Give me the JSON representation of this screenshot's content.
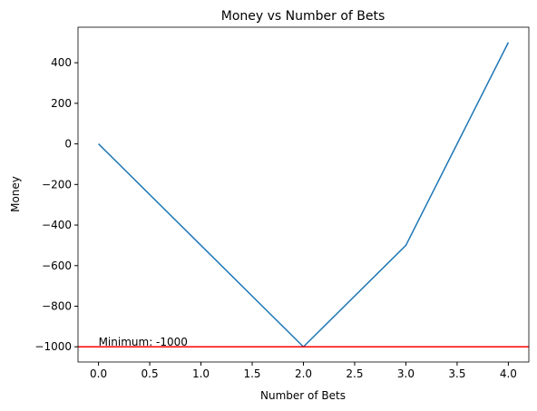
{
  "chart_data": {
    "type": "line",
    "title": "Money vs Number of Bets",
    "xlabel": "Number of Bets",
    "ylabel": "Money",
    "x": [
      0,
      1,
      2,
      3,
      4
    ],
    "series": [
      {
        "color": "#1f77b4",
        "values": [
          0,
          -500,
          -1000,
          -500,
          500
        ]
      }
    ],
    "xlim": [
      -0.2,
      4.2
    ],
    "ylim": [
      -1075,
      575
    ],
    "xticks": [
      {
        "value": 0,
        "label": "0.0"
      },
      {
        "value": 0.5,
        "label": "0.5"
      },
      {
        "value": 1,
        "label": "1.0"
      },
      {
        "value": 1.5,
        "label": "1.5"
      },
      {
        "value": 2,
        "label": "2.0"
      },
      {
        "value": 2.5,
        "label": "2.5"
      },
      {
        "value": 3,
        "label": "3.0"
      },
      {
        "value": 3.5,
        "label": "3.5"
      },
      {
        "value": 4,
        "label": "4.0"
      }
    ],
    "yticks": [
      {
        "value": -1000,
        "label": "−1000"
      },
      {
        "value": -800,
        "label": "−800"
      },
      {
        "value": -600,
        "label": "−600"
      },
      {
        "value": -400,
        "label": "−400"
      },
      {
        "value": -200,
        "label": "−200"
      },
      0,
      200,
      400
    ],
    "hline": {
      "value": -1000,
      "color": "red"
    },
    "annotation": {
      "text": "Minimum: -1000",
      "x": 0,
      "y": -1000
    }
  }
}
